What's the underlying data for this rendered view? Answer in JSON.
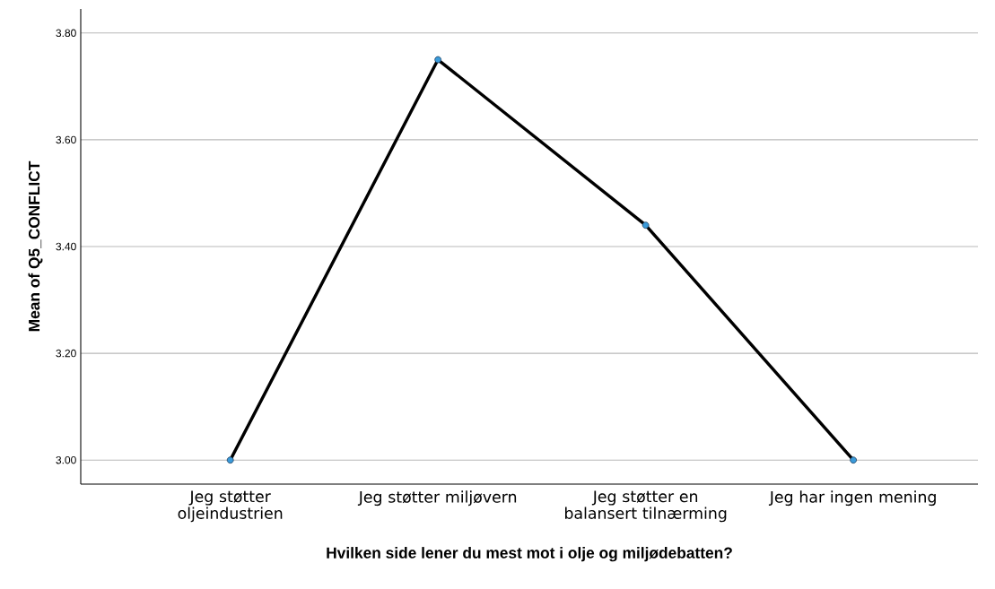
{
  "chart_data": {
    "type": "line",
    "categories": [
      "Jeg støtter oljeindustrien",
      "Jeg støtter miljøvern",
      "Jeg støtter en balansert tilnærming",
      "Jeg har ingen mening"
    ],
    "series": [
      {
        "color": "#000000",
        "values": [
          3.0,
          3.75,
          3.44,
          3.0
        ]
      }
    ],
    "xlabel": "Hvilken side lener du mest mot i olje og miljødebatten?",
    "ylabel": "Mean of Q5_CONFLICT",
    "ylim": [
      2.955,
      3.845
    ],
    "yticks": [
      {
        "value": 3.0,
        "label": "3.00"
      },
      {
        "value": 3.2,
        "label": "3.20"
      },
      {
        "value": 3.4,
        "label": "3.40"
      },
      {
        "value": 3.6,
        "label": "3.60"
      },
      {
        "value": 3.8,
        "label": "3.80"
      }
    ],
    "grid": "y",
    "marker": "circle",
    "line_style": "solid"
  }
}
